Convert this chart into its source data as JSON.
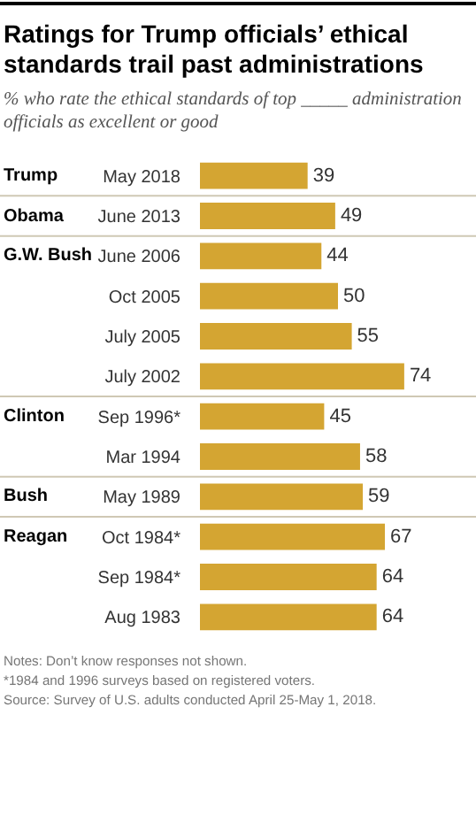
{
  "chart_data": {
    "type": "bar",
    "orientation": "horizontal",
    "title": "Ratings for Trump officials’ ethical standards trail past administrations",
    "subtitle": "% who rate the ethical standards of top _____ administration officials as excellent or good",
    "categories": [
      "May 2018",
      "June 2013",
      "June 2006",
      "Oct 2005",
      "July 2005",
      "July 2002",
      "Sep 1996*",
      "Mar 1994",
      "May 1989",
      "Oct 1984*",
      "Sep 1984*",
      "Aug 1983"
    ],
    "values": [
      39,
      49,
      44,
      50,
      55,
      74,
      45,
      58,
      59,
      67,
      64,
      64
    ],
    "color": "#d4a532",
    "data_labels": true,
    "xlim": [
      0,
      100
    ],
    "tick_labels": "y",
    "grid": false,
    "annotations": [
      "Trump",
      "Obama",
      "G.W. Bush",
      "Clinton",
      "Bush",
      "Reagan",
      "Notes: Don’t know responses not shown.",
      "*1984 and 1996 surveys based on registered voters.",
      "Source: Survey of U.S. adults conducted April 25-May 1, 2018."
    ]
  }
}
